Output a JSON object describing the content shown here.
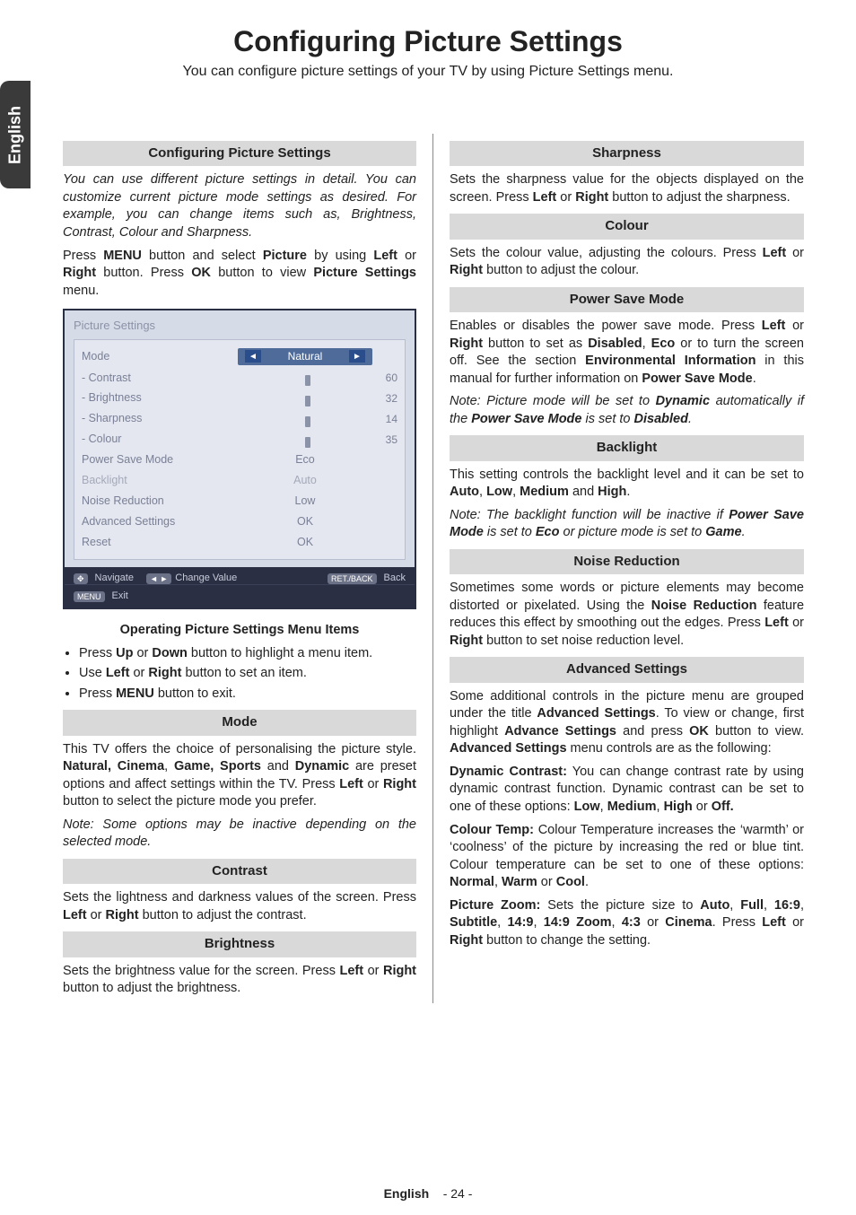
{
  "page": {
    "title": "Configuring Picture Settings",
    "subtitle": "You can configure picture settings of your TV by using Picture Settings menu.",
    "lang_tab": "English",
    "footer_lang": "English",
    "footer_page": "- 24 -"
  },
  "left": {
    "h_config": "Configuring Picture Settings",
    "p_config_intro_i": "You can use different picture settings in detail. You can customize current picture mode settings as desired. For example, you can change items such as, Brightness, Contrast, Colour and Sharpness.",
    "p_press_menu_1": "Press ",
    "p_press_menu_b1": "MENU",
    "p_press_menu_2": " button and select ",
    "p_press_menu_b2": "Picture",
    "p_press_menu_3": " by using ",
    "p_press_menu_b3": "Left",
    "p_press_menu_4": " or ",
    "p_press_menu_b4": "Right",
    "p_press_menu_5": " button. Press ",
    "p_press_menu_b5": "OK",
    "p_press_menu_6": " button to view ",
    "p_press_menu_b6": "Picture Settings",
    "p_press_menu_7": " menu.",
    "h_operating": "Operating Picture Settings Menu Items",
    "li1_1": "Press ",
    "li1_b1": "Up",
    "li1_2": " or ",
    "li1_b2": "Down",
    "li1_3": " button to highlight a menu item.",
    "li2_1": "Use ",
    "li2_b1": "Left",
    "li2_2": " or ",
    "li2_b2": "Right",
    "li2_3": " button to set an item.",
    "li3_1": "Press ",
    "li3_b1": "MENU",
    "li3_2": " button to exit.",
    "h_mode": "Mode",
    "p_mode_1": "This TV offers the choice of personalising the picture style. ",
    "p_mode_b1": "Natural, Cinema",
    "p_mode_2": ", ",
    "p_mode_b2": "Game, Sports",
    "p_mode_3": " and ",
    "p_mode_b3": "Dynamic",
    "p_mode_4": " are preset options and affect settings within the TV. Press ",
    "p_mode_b4": "Left",
    "p_mode_5": " or ",
    "p_mode_b5": "Right",
    "p_mode_6": " button to select the picture mode you prefer.",
    "p_mode_note_i": "Note: Some options may be inactive depending on the selected mode.",
    "h_contrast": "Contrast",
    "p_contrast_1": "Sets the lightness and darkness values of the screen. Press ",
    "p_contrast_b1": "Left",
    "p_contrast_2": " or ",
    "p_contrast_b2": "Right",
    "p_contrast_3": " button to adjust the contrast.",
    "h_brightness": "Brightness",
    "p_bright_1": "Sets the brightness value for the screen. Press ",
    "p_bright_b1": "Left",
    "p_bright_2": " or ",
    "p_bright_b2": "Right",
    "p_bright_3": " button to adjust the brightness."
  },
  "right": {
    "h_sharp": "Sharpness",
    "p_sharp_1": "Sets the sharpness value for the objects displayed on the screen. Press ",
    "p_sharp_b1": "Left",
    "p_sharp_2": " or ",
    "p_sharp_b2": "Right",
    "p_sharp_3": " button to adjust the sharpness.",
    "h_colour": "Colour",
    "p_colour_1": "Sets the colour value, adjusting the colours. Press ",
    "p_colour_b1": "Left",
    "p_colour_2": " or ",
    "p_colour_b2": "Right",
    "p_colour_3": " button to adjust the colour.",
    "h_psm": "Power Save Mode",
    "p_psm_1": "Enables or disables the power save mode. Press ",
    "p_psm_b1": "Left",
    "p_psm_2": " or ",
    "p_psm_b2": "Right",
    "p_psm_3": " button to set as ",
    "p_psm_b3": "Disabled",
    "p_psm_4": ", ",
    "p_psm_b4": "Eco",
    "p_psm_5": " or to turn the screen off. See the section ",
    "p_psm_b5": "Environmental Information",
    "p_psm_6": " in this manual for further information on ",
    "p_psm_b6": "Power Save Mode",
    "p_psm_7": ".",
    "p_psm_note_1": "Note: Picture mode will be set to ",
    "p_psm_note_b1": "Dynamic",
    "p_psm_note_2": " automatically if the ",
    "p_psm_note_b2": "Power Save Mode",
    "p_psm_note_3": " is set to ",
    "p_psm_note_b3": "Disabled",
    "p_psm_note_4": ".",
    "h_backlight": "Backlight",
    "p_bl_1": "This setting controls the backlight level and it can be set to ",
    "p_bl_b1": "Auto",
    "p_bl_2": ", ",
    "p_bl_b2": "Low",
    "p_bl_3": ", ",
    "p_bl_b3": "Medium",
    "p_bl_4": " and ",
    "p_bl_b4": "High",
    "p_bl_5": ".",
    "p_bl_note_1": "Note: The backlight function will be inactive if ",
    "p_bl_note_b1": "Power Save Mode",
    "p_bl_note_2": " is set to ",
    "p_bl_note_b2": "Eco",
    "p_bl_note_3": " or picture mode is set to ",
    "p_bl_note_b3": "Game",
    "p_bl_note_4": ".",
    "h_nr": "Noise Reduction",
    "p_nr_1": "Sometimes some words or picture elements may become distorted or pixelated. Using the ",
    "p_nr_b1": "Noise Reduction",
    "p_nr_2": " feature reduces this effect by smoothing out the edges. Press ",
    "p_nr_b2": "Left",
    "p_nr_3": " or ",
    "p_nr_b3": "Right",
    "p_nr_4": " button to set noise reduction level.",
    "h_adv": "Advanced Settings",
    "p_adv_1": "Some additional controls in the picture menu are grouped under the title ",
    "p_adv_b1": "Advanced Settings",
    "p_adv_2": ". To view or change, first highlight ",
    "p_adv_b2": "Advance Settings",
    "p_adv_3": " and press ",
    "p_adv_b3": "OK",
    "p_adv_4": " button to view. ",
    "p_adv_b4": "Advanced Settings",
    "p_adv_5": " menu controls are as the following:",
    "p_dc_b": "Dynamic Contrast:",
    "p_dc_1": " You can change contrast rate by using dynamic contrast function. Dynamic contrast can be set to one of these options: ",
    "p_dc_b1": "Low",
    "p_dc_2": ", ",
    "p_dc_b2": "Medium",
    "p_dc_3": ", ",
    "p_dc_b3": "High",
    "p_dc_4": " or ",
    "p_dc_b4": "Off.",
    "p_ct_b": "Colour Temp:",
    "p_ct_1": " Colour Temperature increases the ‘warmth’ or ‘coolness’ of the picture by increasing the red or blue tint. Colour temperature can be set to one of these options: ",
    "p_ct_b1": "Normal",
    "p_ct_2": ", ",
    "p_ct_b2": "Warm",
    "p_ct_3": " or ",
    "p_ct_b3": "Cool",
    "p_ct_4": ".",
    "p_pz_b": "Picture Zoom:",
    "p_pz_1": " Sets the picture size to ",
    "p_pz_b1": "Auto",
    "p_pz_2": ", ",
    "p_pz_b2": "Full",
    "p_pz_3": ", ",
    "p_pz_b3": "16:9",
    "p_pz_4": ", ",
    "p_pz_b4": "Subtitle",
    "p_pz_5": ", ",
    "p_pz_b5": "14:9",
    "p_pz_6": ", ",
    "p_pz_b6": "14:9 Zoom",
    "p_pz_7": ", ",
    "p_pz_b7": "4:3",
    "p_pz_8": " or ",
    "p_pz_b8": "Cinema",
    "p_pz_9": ". Press ",
    "p_pz_b9": "Left",
    "p_pz_10": " or ",
    "p_pz_b10": "Right",
    "p_pz_11": " button to change the setting."
  },
  "tvmenu": {
    "title": "Picture Settings",
    "rows": {
      "mode_label": "Mode",
      "mode_value": "Natural",
      "contrast_label": "- Contrast",
      "contrast_value": 60,
      "brightness_label": "- Brightness",
      "brightness_value": 32,
      "sharpness_label": "- Sharpness",
      "sharpness_value": 14,
      "colour_label": "- Colour",
      "colour_value": 35,
      "psm_label": "Power Save Mode",
      "psm_value": "Eco",
      "backlight_label": "Backlight",
      "backlight_value": "Auto",
      "nr_label": "Noise Reduction",
      "nr_value": "Low",
      "adv_label": "Advanced Settings",
      "adv_value": "OK",
      "reset_label": "Reset",
      "reset_value": "OK"
    },
    "footer": {
      "nav_icon": "✥",
      "nav": "Navigate",
      "menu_pill": "MENU",
      "exit": "Exit",
      "lr_icon": "◄ ►",
      "change": "Change Value",
      "back_pill": "RET./BACK",
      "back": "Back"
    },
    "style": {
      "slider_max": 100,
      "border_color": "#2a2f44",
      "bg": "#d6dbe8",
      "inner_bg": "#e4e7f0",
      "text_color": "#7a8096",
      "mode_bg": "#4f6b9a",
      "arrow_bg": "#2a4e8c",
      "footer_bg": "#2a2f44"
    }
  }
}
